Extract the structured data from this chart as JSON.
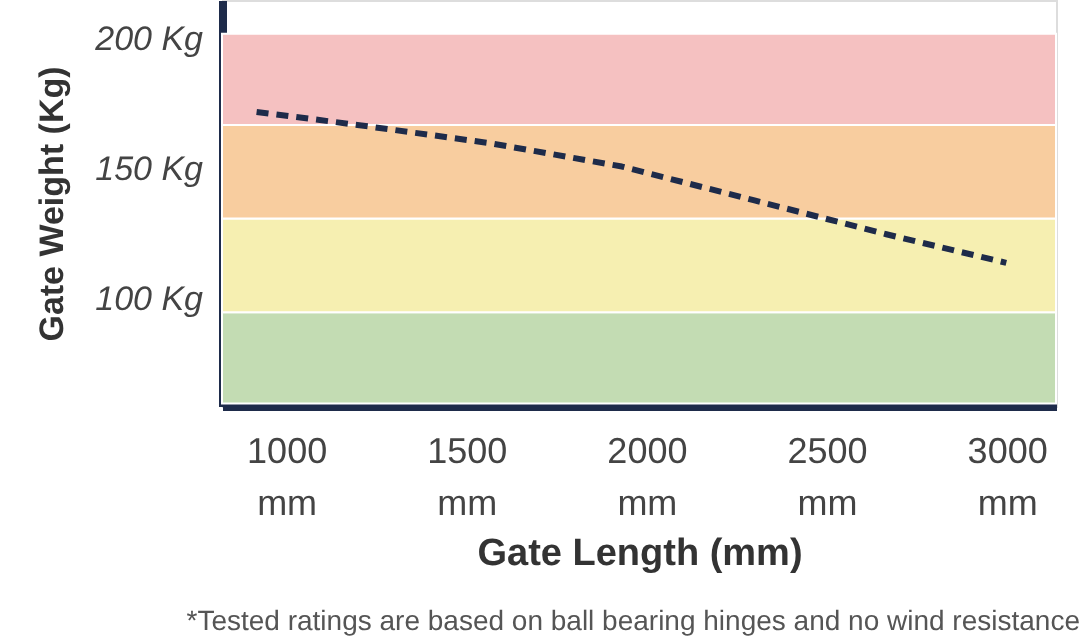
{
  "chart_data": {
    "type": "line",
    "xlabel": "Gate Length (mm)",
    "ylabel": "Gate Weight (Kg)",
    "x": [
      918,
      1198,
      1566,
      1932,
      2300,
      2666,
      2999
    ],
    "series": [
      {
        "color": "#1e2b4a",
        "values": [
          172,
          167,
          160,
          151,
          138,
          125,
          114
        ],
        "line_style": "dashed"
      }
    ],
    "xlim": [
      822,
      3137
    ],
    "ylim": [
      59,
      215
    ],
    "xticks": [
      {
        "value": 1000,
        "label": "1000 mm"
      },
      {
        "value": 1500,
        "label": "1500 mm"
      },
      {
        "value": 2000,
        "label": "2000 mm"
      },
      {
        "value": 2500,
        "label": "2500 mm"
      },
      {
        "value": 3000,
        "label": "3000 mm"
      }
    ],
    "yticks": [
      {
        "value": 100,
        "label": "100 Kg"
      },
      {
        "value": 150,
        "label": "150 Kg"
      },
      {
        "value": 200,
        "label": "200 Kg"
      }
    ],
    "bands": [
      {
        "axis": "y",
        "from": 60,
        "to": 95,
        "color": "#c3dcb3"
      },
      {
        "axis": "y",
        "from": 95,
        "to": 131,
        "color": "#f6efb1"
      },
      {
        "axis": "y",
        "from": 131,
        "to": 167,
        "color": "#f8cd9f"
      },
      {
        "axis": "y",
        "from": 167,
        "to": 202,
        "color": "#f5c1c1"
      }
    ],
    "annotations": [
      "*Tested ratings are based on ball bearing hinges and no wind resistance"
    ],
    "grid": false,
    "marker": "none"
  }
}
